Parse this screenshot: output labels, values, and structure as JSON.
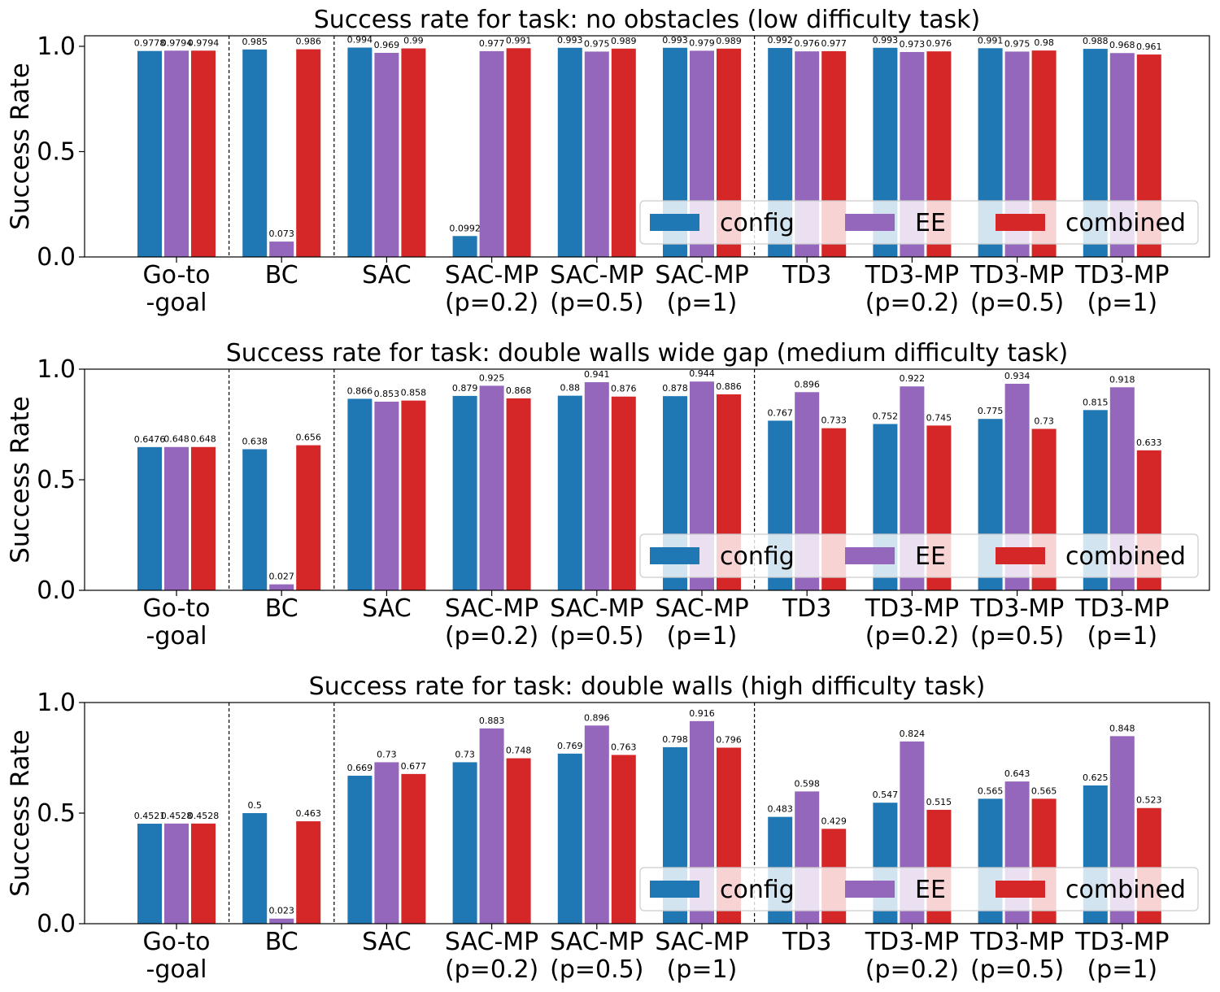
{
  "colors": {
    "config": "#1f77b4",
    "EE": "#9467bd",
    "combined": "#d62728"
  },
  "chart_data": [
    {
      "type": "bar",
      "title": "Success rate for task: no obstacles (low difficulty task)",
      "ylabel": "Success Rate",
      "xlabel": "",
      "ylim": [
        0,
        1.05
      ],
      "yticks": [
        "0.0",
        "0.5",
        "1.0"
      ],
      "legend_position": "lower right",
      "categories": [
        [
          "Go-to",
          "-goal"
        ],
        [
          "BC"
        ],
        [
          "SAC"
        ],
        [
          "SAC-MP",
          "(p=0.2)"
        ],
        [
          "SAC-MP",
          "(p=0.5)"
        ],
        [
          "SAC-MP",
          "(p=1)"
        ],
        [
          "TD3"
        ],
        [
          "TD3-MP",
          "(p=0.2)"
        ],
        [
          "TD3-MP",
          "(p=0.5)"
        ],
        [
          "TD3-MP",
          "(p=1)"
        ]
      ],
      "series": [
        {
          "name": "config",
          "values": [
            0.9778,
            0.985,
            0.994,
            0.0992,
            0.993,
            0.993,
            0.992,
            0.993,
            0.991,
            0.988
          ],
          "labels": [
            "0.9778",
            "0.985",
            "0.994",
            "0.0992",
            "0.993",
            "0.993",
            "0.992",
            "0.993",
            "0.991",
            "0.988"
          ]
        },
        {
          "name": "EE",
          "values": [
            0.9794,
            0.073,
            0.969,
            0.977,
            0.975,
            0.979,
            0.976,
            0.973,
            0.975,
            0.968
          ],
          "labels": [
            "0.9794",
            "0.073",
            "0.969",
            "0.977",
            "0.975",
            "0.979",
            "0.976",
            "0.973",
            "0.975",
            "0.968"
          ]
        },
        {
          "name": "combined",
          "values": [
            0.9794,
            0.986,
            0.99,
            0.991,
            0.989,
            0.989,
            0.977,
            0.976,
            0.98,
            0.961
          ],
          "labels": [
            "0.9794",
            "0.986",
            "0.99",
            "0.991",
            "0.989",
            "0.989",
            "0.977",
            "0.976",
            "0.98",
            "0.961"
          ]
        }
      ],
      "separators_after": [
        0,
        1,
        5
      ]
    },
    {
      "type": "bar",
      "title": "Success rate for task: double walls wide gap (medium difficulty task)",
      "ylabel": "Success Rate",
      "xlabel": "",
      "ylim": [
        0,
        1.0
      ],
      "yticks": [
        "0.0",
        "0.5",
        "1.0"
      ],
      "legend_position": "lower right",
      "categories": [
        [
          "Go-to",
          "-goal"
        ],
        [
          "BC"
        ],
        [
          "SAC"
        ],
        [
          "SAC-MP",
          "(p=0.2)"
        ],
        [
          "SAC-MP",
          "(p=0.5)"
        ],
        [
          "SAC-MP",
          "(p=1)"
        ],
        [
          "TD3"
        ],
        [
          "TD3-MP",
          "(p=0.2)"
        ],
        [
          "TD3-MP",
          "(p=0.5)"
        ],
        [
          "TD3-MP",
          "(p=1)"
        ]
      ],
      "series": [
        {
          "name": "config",
          "values": [
            0.6476,
            0.638,
            0.866,
            0.879,
            0.88,
            0.878,
            0.767,
            0.752,
            0.775,
            0.815
          ],
          "labels": [
            "0.6476",
            "0.638",
            "0.866",
            "0.879",
            "0.88",
            "0.878",
            "0.767",
            "0.752",
            "0.775",
            "0.815"
          ]
        },
        {
          "name": "EE",
          "values": [
            0.648,
            0.027,
            0.853,
            0.925,
            0.941,
            0.944,
            0.896,
            0.922,
            0.934,
            0.918
          ],
          "labels": [
            "0.648",
            "0.027",
            "0.853",
            "0.925",
            "0.941",
            "0.944",
            "0.896",
            "0.922",
            "0.934",
            "0.918"
          ]
        },
        {
          "name": "combined",
          "values": [
            0.648,
            0.656,
            0.858,
            0.868,
            0.876,
            0.886,
            0.733,
            0.745,
            0.73,
            0.633
          ],
          "labels": [
            "0.648",
            "0.656",
            "0.858",
            "0.868",
            "0.876",
            "0.886",
            "0.733",
            "0.745",
            "0.73",
            "0.633"
          ]
        }
      ],
      "separators_after": [
        0,
        1,
        5
      ]
    },
    {
      "type": "bar",
      "title": "Success rate for task: double walls (high difficulty task)",
      "ylabel": "Success Rate",
      "xlabel": "",
      "ylim": [
        0,
        1.0
      ],
      "yticks": [
        "0.0",
        "0.5",
        "1.0"
      ],
      "legend_position": "lower right",
      "categories": [
        [
          "Go-to",
          "-goal"
        ],
        [
          "BC"
        ],
        [
          "SAC"
        ],
        [
          "SAC-MP",
          "(p=0.2)"
        ],
        [
          "SAC-MP",
          "(p=0.5)"
        ],
        [
          "SAC-MP",
          "(p=1)"
        ],
        [
          "TD3"
        ],
        [
          "TD3-MP",
          "(p=0.2)"
        ],
        [
          "TD3-MP",
          "(p=0.5)"
        ],
        [
          "TD3-MP",
          "(p=1)"
        ]
      ],
      "series": [
        {
          "name": "config",
          "values": [
            0.4521,
            0.5,
            0.669,
            0.73,
            0.769,
            0.798,
            0.483,
            0.547,
            0.565,
            0.625
          ],
          "labels": [
            "0.4521",
            "0.5",
            "0.669",
            "0.73",
            "0.769",
            "0.798",
            "0.483",
            "0.547",
            "0.565",
            "0.625"
          ]
        },
        {
          "name": "EE",
          "values": [
            0.4528,
            0.023,
            0.73,
            0.883,
            0.896,
            0.916,
            0.598,
            0.824,
            0.643,
            0.848
          ],
          "labels": [
            "0.4528",
            "0.023",
            "0.73",
            "0.883",
            "0.896",
            "0.916",
            "0.598",
            "0.824",
            "0.643",
            "0.848"
          ]
        },
        {
          "name": "combined",
          "values": [
            0.4528,
            0.463,
            0.677,
            0.748,
            0.763,
            0.796,
            0.429,
            0.515,
            0.565,
            0.523
          ],
          "labels": [
            "0.4528",
            "0.463",
            "0.677",
            "0.748",
            "0.763",
            "0.796",
            "0.429",
            "0.515",
            "0.565",
            "0.523"
          ]
        }
      ],
      "separators_after": [
        0,
        1,
        5
      ]
    }
  ]
}
